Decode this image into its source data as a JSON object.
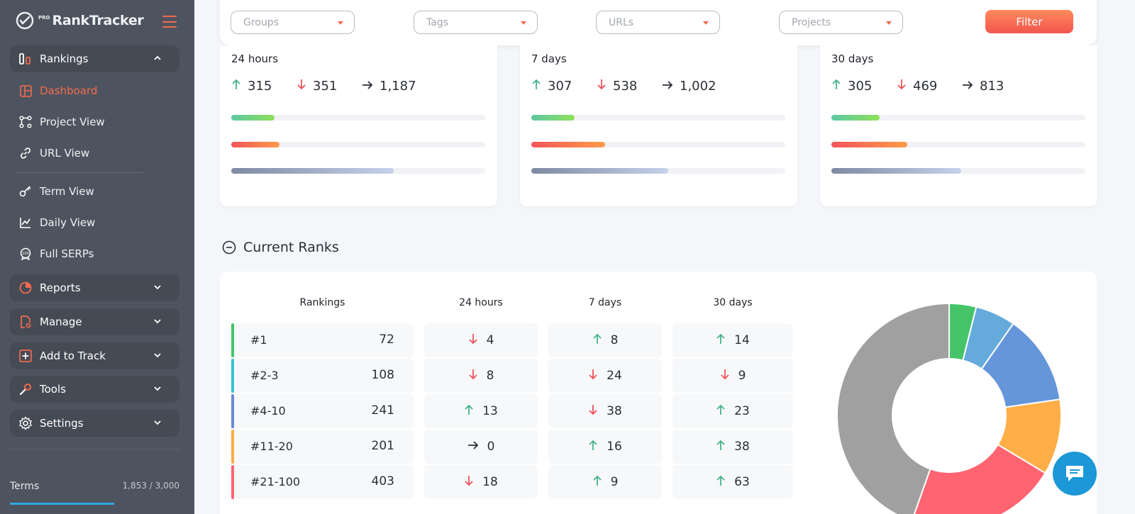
{
  "brand": {
    "prefix": "PRO",
    "name": "RankTracker"
  },
  "sidebar": {
    "rankings_group": "Rankings",
    "items": [
      {
        "label": "Dashboard"
      },
      {
        "label": "Project View"
      },
      {
        "label": "URL View"
      },
      {
        "label": "Term View"
      },
      {
        "label": "Daily View"
      },
      {
        "label": "Full SERPs"
      }
    ],
    "groups": [
      {
        "label": "Reports"
      },
      {
        "label": "Manage"
      },
      {
        "label": "Add to Track"
      },
      {
        "label": "Tools"
      },
      {
        "label": "Settings"
      }
    ],
    "terms_label": "Terms",
    "terms_count": "1,853 / 3,000"
  },
  "filters": {
    "groups": "Groups",
    "tags": "Tags",
    "urls": "URLs",
    "projects": "Projects",
    "button": "Filter"
  },
  "stats": [
    {
      "period": "24 hours",
      "up": "315",
      "down": "351",
      "same": "1,187",
      "up_ratio": 0.17,
      "down_ratio": 0.19,
      "same_ratio": 0.64
    },
    {
      "period": "7 days",
      "up": "307",
      "down": "538",
      "same": "1,002",
      "up_ratio": 0.17,
      "down_ratio": 0.29,
      "same_ratio": 0.54
    },
    {
      "period": "30 days",
      "up": "305",
      "down": "469",
      "same": "813",
      "up_ratio": 0.19,
      "down_ratio": 0.3,
      "same_ratio": 0.51
    }
  ],
  "current_ranks": {
    "title": "Current Ranks",
    "headers": {
      "rankings": "Rankings",
      "h24": "24 hours",
      "d7": "7 days",
      "d30": "30 days"
    },
    "rows": [
      {
        "label": "#1",
        "value": "72",
        "color": "#45c46a",
        "h24": {
          "dir": "down",
          "val": "4"
        },
        "d7": {
          "dir": "up",
          "val": "8"
        },
        "d30": {
          "dir": "up",
          "val": "14"
        }
      },
      {
        "label": "#2-3",
        "value": "108",
        "color": "#3fc1d0",
        "h24": {
          "dir": "down",
          "val": "8"
        },
        "d7": {
          "dir": "down",
          "val": "24"
        },
        "d30": {
          "dir": "down",
          "val": "9"
        }
      },
      {
        "label": "#4-10",
        "value": "241",
        "color": "#6a8ad8",
        "h24": {
          "dir": "up",
          "val": "13"
        },
        "d7": {
          "dir": "down",
          "val": "38"
        },
        "d30": {
          "dir": "up",
          "val": "23"
        }
      },
      {
        "label": "#11-20",
        "value": "201",
        "color": "#ffad47",
        "h24": {
          "dir": "same",
          "val": "0"
        },
        "d7": {
          "dir": "up",
          "val": "16"
        },
        "d30": {
          "dir": "up",
          "val": "38"
        }
      },
      {
        "label": "#21-100",
        "value": "403",
        "color": "#ff6470",
        "h24": {
          "dir": "down",
          "val": "18"
        },
        "d7": {
          "dir": "up",
          "val": "9"
        },
        "d30": {
          "dir": "up",
          "val": "63"
        }
      }
    ]
  },
  "donut_slices": [
    {
      "label": "#1",
      "percent": 3.9,
      "color": "#45c46a"
    },
    {
      "label": "#2-3",
      "percent": 5.8,
      "color": "#64aadb"
    },
    {
      "label": "#4-10",
      "percent": 13.0,
      "color": "#6596d9"
    },
    {
      "label": "#11-20",
      "percent": 10.9,
      "color": "#ffad47"
    },
    {
      "label": "#21-100",
      "percent": 21.8,
      "color": "#ff6470"
    },
    {
      "label": "remaining",
      "percent": 44.6,
      "color": "#a0a0a0"
    }
  ],
  "colors": {
    "accent": "#f26b4e",
    "up": "#46b38a",
    "down": "#f0525a",
    "sidebar": "#4e545f"
  }
}
